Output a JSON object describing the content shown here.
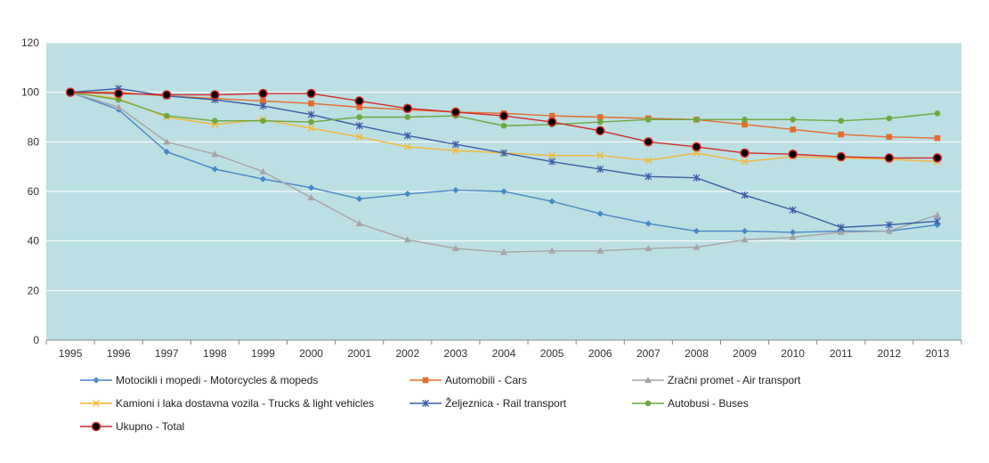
{
  "chart_data": {
    "type": "line",
    "title": "",
    "xlabel": "",
    "ylabel": "",
    "ylim": [
      0,
      120
    ],
    "yticks": [
      "0",
      "20",
      "40",
      "60",
      "80",
      "100",
      "120"
    ],
    "categories": [
      "1995",
      "1996",
      "1997",
      "1998",
      "1999",
      "2000",
      "2001",
      "2002",
      "2003",
      "2004",
      "2005",
      "2006",
      "2007",
      "2008",
      "2009",
      "2010",
      "2011",
      "2012",
      "2013"
    ],
    "grid": "horizontal",
    "plot_background": "#bcdfe3",
    "legend_position": "bottom",
    "series": [
      {
        "name": "Motocikli i mopedi - Motorcycles & mopeds",
        "color": "#4a86c8",
        "marker": "diamond",
        "values": [
          100,
          93,
          76,
          69,
          65,
          61.5,
          57,
          59,
          60.5,
          60,
          56,
          51,
          47,
          44,
          44,
          43.5,
          44,
          44,
          46.5
        ]
      },
      {
        "name": "Automobili - Cars",
        "color": "#e46c2a",
        "marker": "square",
        "values": [
          100,
          100,
          98.5,
          97.5,
          96.5,
          95.5,
          94,
          93,
          92,
          91.5,
          90.5,
          90,
          89.5,
          89,
          87,
          85,
          83,
          82,
          81.5
        ]
      },
      {
        "name": "Zračni promet - Air transport",
        "color": "#a5a5a5",
        "marker": "triangle",
        "values": [
          100,
          94,
          80,
          75,
          68,
          57.5,
          47,
          40.5,
          37,
          35.5,
          36,
          36,
          37,
          37.5,
          40.5,
          41.5,
          43.5,
          44,
          50.5
        ]
      },
      {
        "name": "Kamioni i laka dostavna vozila - Trucks & light vehicles",
        "color": "#f3b732",
        "marker": "x",
        "values": [
          100,
          97.5,
          90,
          87,
          89,
          85.5,
          82,
          78,
          76.5,
          75.5,
          74.5,
          74.5,
          72.5,
          75.5,
          72,
          74,
          73.5,
          73,
          72
        ]
      },
      {
        "name": "Željeznica - Rail transport",
        "color": "#3a5ea6",
        "marker": "star",
        "values": [
          100,
          101.5,
          98.5,
          97,
          94.5,
          91,
          86.5,
          82.5,
          79,
          75.5,
          72,
          69,
          66,
          65.5,
          58.5,
          52.5,
          45.5,
          46.5,
          48
        ]
      },
      {
        "name": "Autobusi - Buses",
        "color": "#6ea83f",
        "marker": "circle",
        "values": [
          100,
          97,
          90.5,
          88.5,
          88.5,
          88,
          90,
          90,
          90.5,
          86.5,
          87,
          88,
          89,
          89,
          89,
          89,
          88.5,
          89.5,
          91.5
        ]
      },
      {
        "name": "Ukupno - Total",
        "color": "#d42a2a",
        "marker": "bigcircle",
        "values": [
          100,
          99.5,
          99,
          99,
          99.5,
          99.5,
          96.5,
          93.5,
          92,
          90.5,
          88,
          84.5,
          80,
          78,
          75.5,
          75,
          74,
          73.5,
          73.5
        ]
      }
    ]
  }
}
